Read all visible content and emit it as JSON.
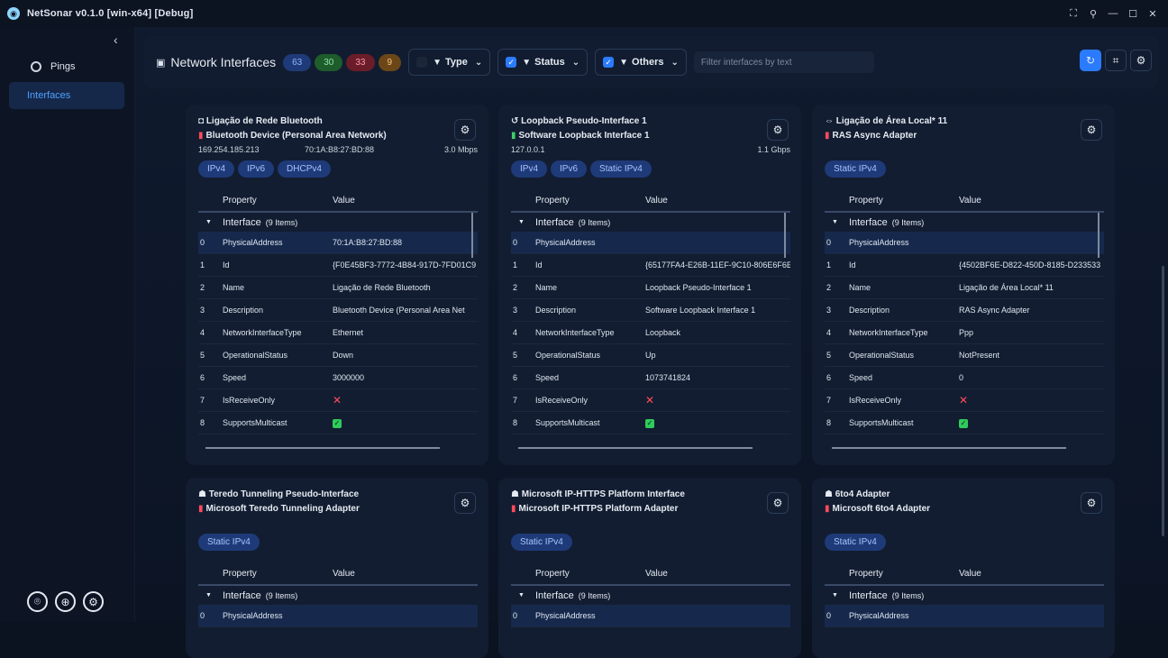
{
  "app_title": "NetSonar v0.1.0   [win-x64] [Debug]",
  "sidebar": {
    "items": [
      {
        "label": "Pings",
        "icon": "ping-icon"
      },
      {
        "label": "Interfaces",
        "icon": "interfaces-icon"
      }
    ]
  },
  "toolbar": {
    "title": "Network Interfaces",
    "counts": [
      "63",
      "30",
      "33",
      "9"
    ],
    "filter_type": "Type",
    "filter_status": "Status",
    "filter_others": "Others",
    "search_placeholder": "Filter interfaces by text"
  },
  "grid_headers": {
    "property": "Property",
    "value": "Value"
  },
  "cards": [
    {
      "name": "Ligação de Rede Bluetooth",
      "adapter": "Bluetooth Device (Personal Area Network)",
      "ip": "169.254.185.213",
      "mac": "70:1A:B8:27:BD:88",
      "speed": "3.0 Mbps",
      "tags": [
        "IPv4",
        "IPv6",
        "DHCPv4"
      ],
      "group_label": "Interface",
      "group_count": "(9 Items)",
      "rows": [
        {
          "i": "0",
          "p": "PhysicalAddress",
          "v": "70:1A:B8:27:BD:88"
        },
        {
          "i": "1",
          "p": "Id",
          "v": "{F0E45BF3-7772-4B84-917D-7FD01C9"
        },
        {
          "i": "2",
          "p": "Name",
          "v": "Ligação de Rede Bluetooth"
        },
        {
          "i": "3",
          "p": "Description",
          "v": "Bluetooth Device (Personal Area Net"
        },
        {
          "i": "4",
          "p": "NetworkInterfaceType",
          "v": "Ethernet"
        },
        {
          "i": "5",
          "p": "OperationalStatus",
          "v": "Down"
        },
        {
          "i": "6",
          "p": "Speed",
          "v": "3000000"
        },
        {
          "i": "7",
          "p": "IsReceiveOnly",
          "v": ""
        },
        {
          "i": "8",
          "p": "SupportsMulticast",
          "v": ""
        }
      ]
    },
    {
      "name": "Loopback Pseudo-Interface 1",
      "adapter": "Software Loopback Interface 1",
      "ip": "127.0.0.1",
      "mac": "",
      "speed": "1.1 Gbps",
      "tags": [
        "IPv4",
        "IPv6",
        "Static IPv4"
      ],
      "group_label": "Interface",
      "group_count": "(9 Items)",
      "rows": [
        {
          "i": "0",
          "p": "PhysicalAddress",
          "v": ""
        },
        {
          "i": "1",
          "p": "Id",
          "v": "{65177FA4-E26B-11EF-9C10-806E6F6E"
        },
        {
          "i": "2",
          "p": "Name",
          "v": "Loopback Pseudo-Interface 1"
        },
        {
          "i": "3",
          "p": "Description",
          "v": "Software Loopback Interface 1"
        },
        {
          "i": "4",
          "p": "NetworkInterfaceType",
          "v": "Loopback"
        },
        {
          "i": "5",
          "p": "OperationalStatus",
          "v": "Up"
        },
        {
          "i": "6",
          "p": "Speed",
          "v": "1073741824"
        },
        {
          "i": "7",
          "p": "IsReceiveOnly",
          "v": ""
        },
        {
          "i": "8",
          "p": "SupportsMulticast",
          "v": ""
        }
      ]
    },
    {
      "name": "Ligação de Área Local* 11",
      "adapter": "RAS Async Adapter",
      "ip": "",
      "mac": "",
      "speed": "",
      "tags": [
        "Static IPv4"
      ],
      "group_label": "Interface",
      "group_count": "(9 Items)",
      "rows": [
        {
          "i": "0",
          "p": "PhysicalAddress",
          "v": ""
        },
        {
          "i": "1",
          "p": "Id",
          "v": "{4502BF6E-D822-450D-8185-D233533"
        },
        {
          "i": "2",
          "p": "Name",
          "v": "Ligação de Área Local* 11"
        },
        {
          "i": "3",
          "p": "Description",
          "v": "RAS Async Adapter"
        },
        {
          "i": "4",
          "p": "NetworkInterfaceType",
          "v": "Ppp"
        },
        {
          "i": "5",
          "p": "OperationalStatus",
          "v": "NotPresent"
        },
        {
          "i": "6",
          "p": "Speed",
          "v": "0"
        },
        {
          "i": "7",
          "p": "IsReceiveOnly",
          "v": ""
        },
        {
          "i": "8",
          "p": "SupportsMulticast",
          "v": ""
        }
      ]
    },
    {
      "name": "Teredo Tunneling Pseudo-Interface",
      "adapter": "Microsoft Teredo Tunneling Adapter",
      "tags": [
        "Static IPv4"
      ],
      "group_label": "Interface",
      "group_count": "(9 Items)",
      "first_row": {
        "i": "0",
        "p": "PhysicalAddress"
      }
    },
    {
      "name": "Microsoft IP-HTTPS Platform Interface",
      "adapter": "Microsoft IP-HTTPS Platform Adapter",
      "tags": [
        "Static IPv4"
      ],
      "group_label": "Interface",
      "group_count": "(9 Items)",
      "first_row": {
        "i": "0",
        "p": "PhysicalAddress"
      }
    },
    {
      "name": "6to4 Adapter",
      "adapter": "Microsoft 6to4 Adapter",
      "tags": [
        "Static IPv4"
      ],
      "group_label": "Interface",
      "group_count": "(9 Items)",
      "first_row": {
        "i": "0",
        "p": "PhysicalAddress"
      }
    }
  ]
}
